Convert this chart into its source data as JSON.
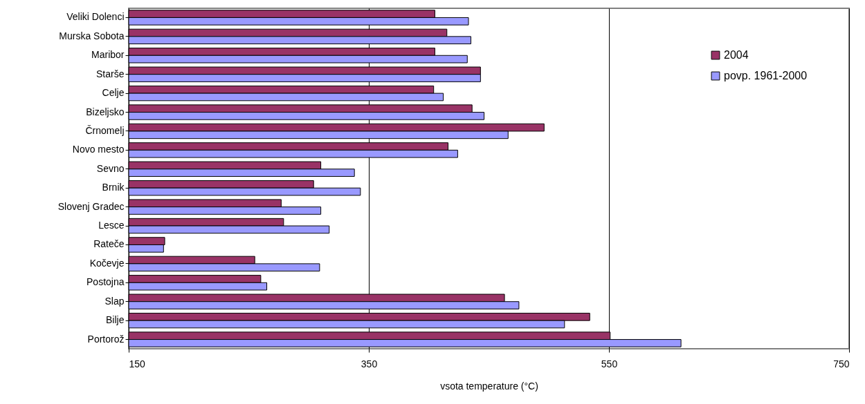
{
  "chart_data": {
    "type": "bar",
    "orientation": "horizontal",
    "xlabel": "vsota temperature (°C)",
    "categories": [
      "Veliki Dolenci",
      "Murska Sobota",
      "Maribor",
      "Starše",
      "Celje",
      "Bizeljsko",
      "Črnomelj",
      "Novo mesto",
      "Sevno",
      "Brnik",
      "Slovenj Gradec",
      "Lesce",
      "Rateče",
      "Kočevje",
      "Postojna",
      "Slap",
      "Bilje",
      "Portorož"
    ],
    "series": [
      {
        "name": "2004",
        "color": "#993366",
        "values": [
          405,
          415,
          405,
          443,
          404,
          436,
          496,
          416,
          310,
          304,
          277,
          279,
          180,
          255,
          260,
          463,
          534,
          551
        ]
      },
      {
        "name": "povp. 1961-2000",
        "color": "#9999ff",
        "values": [
          433,
          435,
          432,
          443,
          412,
          446,
          466,
          424,
          338,
          343,
          310,
          317,
          179,
          309,
          265,
          475,
          513,
          610
        ]
      }
    ],
    "xlim": [
      150,
      750
    ],
    "xticks": [
      150,
      350,
      550,
      750
    ],
    "grid": "x",
    "legend": "top right"
  }
}
